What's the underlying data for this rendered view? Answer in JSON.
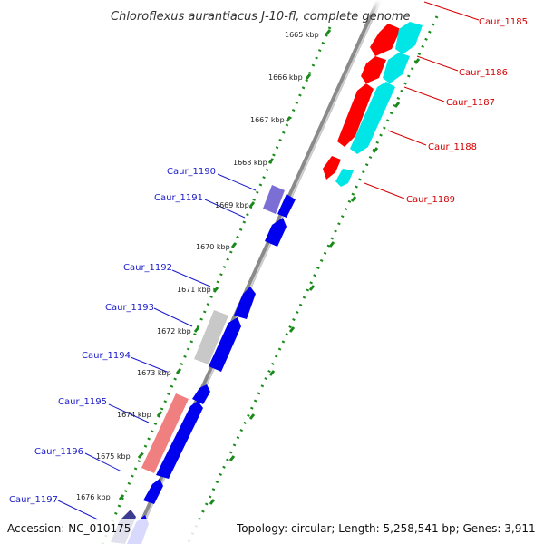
{
  "title": "Chloroflexus aurantiacus J-10-fl, complete genome",
  "footer": {
    "accession": "Accession: NC_010175",
    "topology": "Topology: circular; Length: 5,258,541 bp; Genes: 3,911"
  },
  "colors": {
    "forward_label": "#d40000",
    "reverse_label": "#1a1acc",
    "red": "#ff0000",
    "cyan": "#00e6e6",
    "blue": "#0000ee",
    "gray_gene": "#c8c8c8",
    "pink_gene": "#f08080",
    "purple_gene": "#7b6fd6",
    "navy_gene": "#3b3b8f",
    "backbone": "#888888",
    "tick": "#1a8a1a"
  },
  "ticks": [
    "1665 kbp",
    "1666 kbp",
    "1667 kbp",
    "1668 kbp",
    "1669 kbp",
    "1670 kbp",
    "1671 kbp",
    "1672 kbp",
    "1673 kbp",
    "1674 kbp",
    "1675 kbp",
    "1676 kbp"
  ],
  "forward_labels": [
    "Caur_1185",
    "Caur_1186",
    "Caur_1187",
    "Caur_1188",
    "Caur_1189"
  ],
  "reverse_labels": [
    "Caur_1190",
    "Caur_1191",
    "Caur_1192",
    "Caur_1193",
    "Caur_1194",
    "Caur_1195",
    "Caur_1196",
    "Caur_1197"
  ]
}
